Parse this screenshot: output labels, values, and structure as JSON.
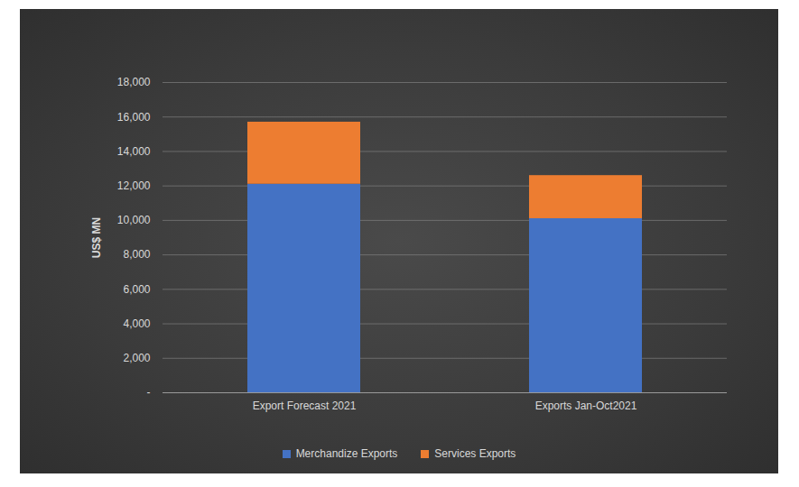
{
  "chart_data": {
    "type": "bar",
    "categories": [
      "Export Forecast 2021",
      "Exports Jan-Oct2021"
    ],
    "series": [
      {
        "name": "Merchandize Exports",
        "color": "#4472c4",
        "values": [
          12100,
          10100
        ]
      },
      {
        "name": "Services Exports",
        "color": "#ed7d31",
        "values": [
          3600,
          2500
        ]
      }
    ],
    "ylabel": "US$ MN",
    "ylim": [
      0,
      18000
    ],
    "yticks": [
      {
        "value": 0,
        "label": "-"
      },
      {
        "value": 2000,
        "label": "2,000"
      },
      {
        "value": 4000,
        "label": "4,000"
      },
      {
        "value": 6000,
        "label": "6,000"
      },
      {
        "value": 8000,
        "label": "8,000"
      },
      {
        "value": 10000,
        "label": "10,000"
      },
      {
        "value": 12000,
        "label": "12,000"
      },
      {
        "value": 14000,
        "label": "14,000"
      },
      {
        "value": 16000,
        "label": "16,000"
      },
      {
        "value": 18000,
        "label": "18,000"
      }
    ],
    "grid": true,
    "stacked": true,
    "legend": "bottom"
  }
}
